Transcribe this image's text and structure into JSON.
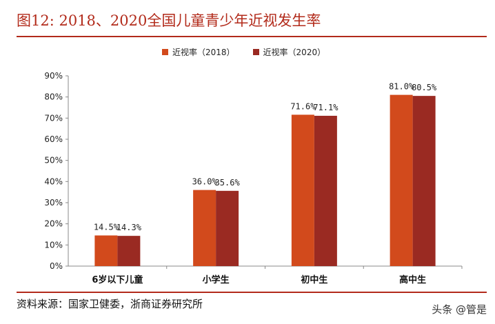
{
  "figure": {
    "title": "图12:  2018、2020全国儿童青少年近视发生率",
    "source": "资料来源：国家卫健委，浙商证券研究所",
    "watermark": "头条 @管是"
  },
  "colors": {
    "accent": "#b22a1a",
    "series_2018": "#d24a1c",
    "series_2020": "#9a2a22"
  },
  "chart_data": {
    "type": "bar",
    "categories": [
      "6岁以下儿童",
      "小学生",
      "初中生",
      "高中生"
    ],
    "series": [
      {
        "name": "近视率（2018）",
        "values": [
          14.5,
          36.0,
          71.6,
          81.0
        ],
        "labels": [
          "14.5%",
          "36.0%",
          "71.6%",
          "81.0%"
        ]
      },
      {
        "name": "近视率（2020）",
        "values": [
          14.3,
          35.6,
          71.1,
          80.5
        ],
        "labels": [
          "14.3%",
          "35.6%",
          "71.1%",
          "80.5%"
        ]
      }
    ],
    "ylim": [
      0,
      90
    ],
    "yticks": [
      "0%",
      "10%",
      "20%",
      "30%",
      "40%",
      "50%",
      "60%",
      "70%",
      "80%",
      "90%"
    ],
    "xlabel": "",
    "ylabel": "",
    "grid": false,
    "legend": "top-center"
  }
}
